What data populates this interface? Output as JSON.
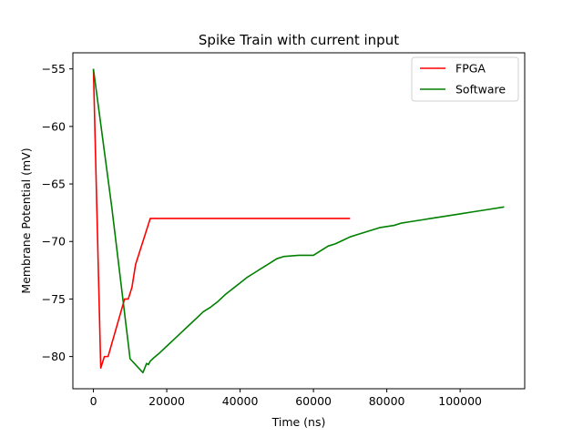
{
  "chart_data": {
    "type": "line",
    "title": "Spike Train with current input",
    "xlabel": "Time (ns)",
    "ylabel": "Membrane Potential (mV)",
    "xlim": [
      -5600,
      117600
    ],
    "ylim": [
      -82.8,
      -53.6
    ],
    "xticks": [
      0,
      20000,
      40000,
      60000,
      80000,
      100000
    ],
    "yticks": [
      -80,
      -75,
      -70,
      -65,
      -60,
      -55
    ],
    "yticklabels": [
      "−80",
      "−75",
      "−70",
      "−65",
      "−60",
      "−55"
    ],
    "grid": false,
    "legend_position": "top-right",
    "series": [
      {
        "name": "FPGA",
        "color": "#ff0000",
        "x": [
          0,
          2000,
          3000,
          4000,
          8500,
          9500,
          10500,
          11500,
          15500,
          70000
        ],
        "y": [
          -55,
          -81,
          -80,
          -80,
          -75,
          -75,
          -74,
          -72,
          -68,
          -68
        ]
      },
      {
        "name": "Software",
        "color": "#008000",
        "x": [
          0,
          5000,
          10000,
          13500,
          14500,
          15000,
          15500,
          16500,
          18000,
          20000,
          22000,
          24000,
          26000,
          28000,
          30000,
          32000,
          34000,
          36000,
          38000,
          40000,
          42000,
          44000,
          46000,
          48000,
          50000,
          52000,
          56000,
          60000,
          62000,
          64000,
          66000,
          68000,
          70000,
          72000,
          74000,
          76000,
          78000,
          80000,
          82000,
          84000,
          86000,
          88000,
          90000,
          92000,
          94000,
          96000,
          98000,
          100000,
          104000,
          108000,
          112000
        ],
        "y": [
          -55,
          -67,
          -80.2,
          -81.4,
          -80.6,
          -80.7,
          -80.4,
          -80.1,
          -79.7,
          -79.1,
          -78.5,
          -77.9,
          -77.3,
          -76.7,
          -76.1,
          -75.7,
          -75.2,
          -74.6,
          -74.1,
          -73.6,
          -73.1,
          -72.7,
          -72.3,
          -71.9,
          -71.5,
          -71.3,
          -71.2,
          -71.2,
          -70.8,
          -70.4,
          -70.2,
          -69.9,
          -69.6,
          -69.4,
          -69.2,
          -69.0,
          -68.8,
          -68.7,
          -68.6,
          -68.4,
          -68.3,
          -68.2,
          -68.1,
          -68.0,
          -67.9,
          -67.8,
          -67.7,
          -67.6,
          -67.4,
          -67.2,
          -67.0
        ]
      }
    ]
  }
}
